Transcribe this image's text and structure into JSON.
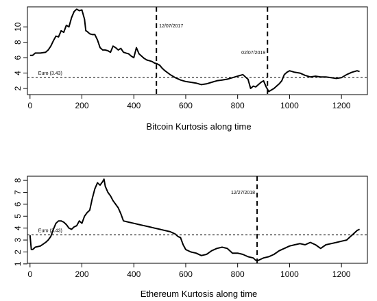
{
  "chart_data": [
    {
      "type": "line",
      "xlabel": "Bitcoin Kurtosis along time",
      "ylabel": "",
      "xlim": [
        -10,
        1300
      ],
      "ylim": [
        1.2,
        12.6
      ],
      "xticks": [
        0,
        200,
        400,
        600,
        800,
        1000,
        1200
      ],
      "yticks": [
        2,
        4,
        6,
        8,
        10
      ],
      "grid": false,
      "series": [
        {
          "x": [
            0,
            10,
            20,
            40,
            60,
            70,
            80,
            90,
            100,
            110,
            120,
            130,
            140,
            150,
            160,
            170,
            180,
            190,
            200,
            210,
            215,
            220,
            230,
            240,
            250,
            260,
            270,
            280,
            290,
            300,
            310,
            320,
            330,
            340,
            350,
            360,
            370,
            380,
            390,
            400,
            410,
            420,
            430,
            440,
            450,
            460,
            470,
            480,
            490,
            500,
            510,
            520,
            540,
            560,
            580,
            600,
            620,
            640,
            660,
            680,
            700,
            720,
            740,
            760,
            780,
            800,
            810,
            820,
            830,
            840,
            850,
            860,
            870,
            880,
            890,
            900,
            910,
            920,
            930,
            940,
            950,
            960,
            970,
            980,
            990,
            1000,
            1010,
            1020,
            1040,
            1060,
            1080,
            1100,
            1120,
            1140,
            1160,
            1180,
            1200,
            1220,
            1240,
            1260,
            1270
          ],
          "y": [
            6.3,
            6.3,
            6.6,
            6.6,
            6.7,
            7.0,
            7.5,
            8.2,
            8.8,
            8.7,
            9.5,
            9.3,
            10.2,
            10.0,
            11.2,
            12.0,
            12.3,
            12.1,
            12.2,
            11.0,
            9.5,
            9.4,
            9.1,
            9.0,
            9.0,
            8.3,
            7.3,
            7.0,
            7.0,
            6.9,
            6.7,
            7.5,
            7.3,
            7.0,
            7.2,
            6.7,
            6.6,
            6.5,
            6.2,
            6.0,
            7.3,
            6.5,
            6.2,
            5.9,
            5.7,
            5.6,
            5.5,
            5.3,
            5.2,
            5.0,
            4.6,
            4.3,
            3.8,
            3.4,
            3.1,
            2.9,
            2.8,
            2.7,
            2.5,
            2.6,
            2.8,
            3.0,
            3.1,
            3.2,
            3.4,
            3.6,
            3.7,
            3.8,
            3.5,
            3.2,
            2.0,
            2.3,
            2.2,
            2.5,
            2.8,
            3.0,
            2.2,
            1.6,
            1.8,
            2.0,
            2.3,
            2.6,
            3.0,
            3.8,
            4.1,
            4.3,
            4.2,
            4.1,
            4.0,
            3.7,
            3.5,
            3.6,
            3.5,
            3.5,
            3.4,
            3.3,
            3.4,
            3.8,
            4.1,
            4.3,
            4.2
          ]
        }
      ],
      "hlines": [
        {
          "y": 3.43,
          "label": "Euro (3.43)"
        }
      ],
      "vlines": [
        {
          "x": 487,
          "label": "12/07/2017"
        },
        {
          "x": 915,
          "label": "02/07/2019"
        }
      ]
    },
    {
      "type": "line",
      "xlabel": "Ethereum Kurtosis along time",
      "ylabel": "",
      "xlim": [
        -10,
        1300
      ],
      "ylim": [
        1.05,
        8.35
      ],
      "xticks": [
        0,
        200,
        400,
        600,
        800,
        1000,
        1200
      ],
      "yticks": [
        1,
        2,
        3,
        4,
        5,
        6,
        7,
        8
      ],
      "grid": false,
      "series": [
        {
          "x": [
            0,
            5,
            10,
            20,
            40,
            60,
            70,
            80,
            90,
            100,
            110,
            120,
            130,
            140,
            150,
            160,
            170,
            180,
            190,
            200,
            210,
            220,
            230,
            240,
            250,
            260,
            270,
            280,
            285,
            290,
            300,
            310,
            320,
            330,
            340,
            350,
            360,
            380,
            400,
            420,
            440,
            460,
            480,
            500,
            520,
            540,
            560,
            570,
            580,
            590,
            600,
            620,
            640,
            660,
            680,
            700,
            720,
            740,
            760,
            780,
            800,
            820,
            840,
            860,
            870,
            880,
            890,
            900,
            920,
            940,
            960,
            980,
            1000,
            1020,
            1040,
            1060,
            1080,
            1100,
            1120,
            1140,
            1160,
            1180,
            1200,
            1220,
            1240,
            1260,
            1270
          ],
          "y": [
            3.4,
            2.2,
            2.2,
            2.4,
            2.5,
            2.8,
            3.0,
            3.3,
            3.9,
            4.4,
            4.6,
            4.6,
            4.5,
            4.3,
            4.0,
            3.9,
            4.1,
            4.2,
            4.6,
            4.4,
            5.0,
            5.3,
            5.5,
            6.5,
            7.3,
            7.8,
            7.6,
            7.9,
            8.1,
            7.5,
            7.0,
            6.7,
            6.3,
            6.0,
            5.7,
            5.2,
            4.6,
            4.5,
            4.4,
            4.3,
            4.2,
            4.1,
            4.0,
            3.9,
            3.8,
            3.7,
            3.5,
            3.3,
            3.2,
            2.6,
            2.2,
            2.0,
            1.9,
            1.7,
            1.8,
            2.1,
            2.3,
            2.4,
            2.3,
            1.9,
            1.9,
            1.8,
            1.6,
            1.5,
            1.3,
            1.3,
            1.4,
            1.5,
            1.6,
            1.8,
            2.1,
            2.3,
            2.5,
            2.6,
            2.7,
            2.6,
            2.8,
            2.6,
            2.3,
            2.6,
            2.7,
            2.8,
            2.9,
            3.0,
            3.4,
            3.8,
            3.9
          ]
        }
      ],
      "hlines": [
        {
          "y": 3.43,
          "label": "Euro (3.43)"
        }
      ],
      "vlines": [
        {
          "x": 875,
          "label": "12/27/2018"
        }
      ]
    }
  ]
}
